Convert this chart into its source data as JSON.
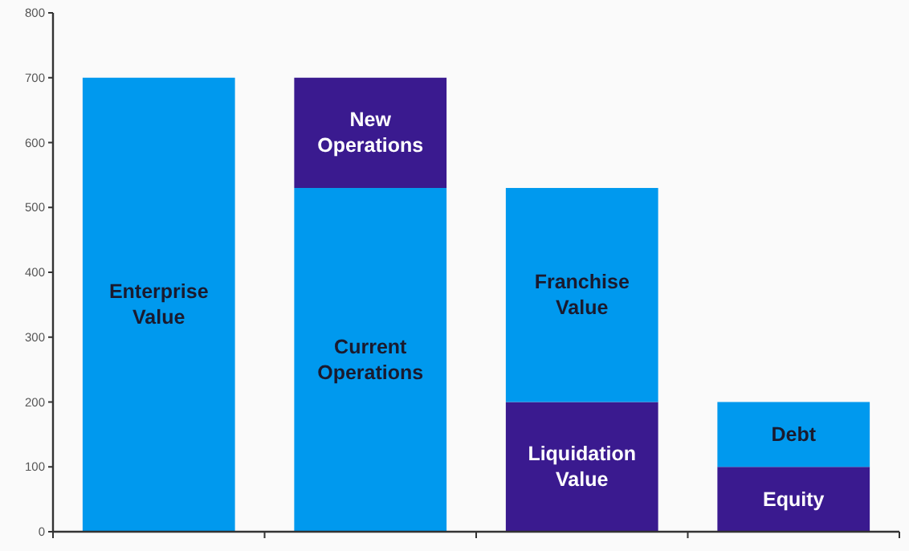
{
  "chart_data": {
    "type": "bar",
    "stacked": true,
    "categories": [
      null,
      null,
      null,
      null
    ],
    "series": [
      {
        "colors": [
          "#0099ee",
          "#0099ee",
          "#3a1a8f",
          "#3a1a8f"
        ],
        "values": [
          700,
          530,
          200,
          100
        ],
        "value_labels": [
          "Enterprise Value",
          "Current Operations",
          "Liquidation Value",
          "Equity"
        ]
      },
      {
        "colors": [
          null,
          "#3a1a8f",
          "#0099ee",
          "#0099ee"
        ],
        "values": [
          null,
          170,
          330,
          100
        ],
        "value_labels": [
          null,
          "New Operations",
          "Franchise Value",
          "Debt"
        ]
      }
    ],
    "ylim": [
      0,
      800
    ],
    "yticks": [
      0,
      100,
      200,
      300,
      400,
      500,
      600,
      700,
      800
    ],
    "grid": false
  }
}
